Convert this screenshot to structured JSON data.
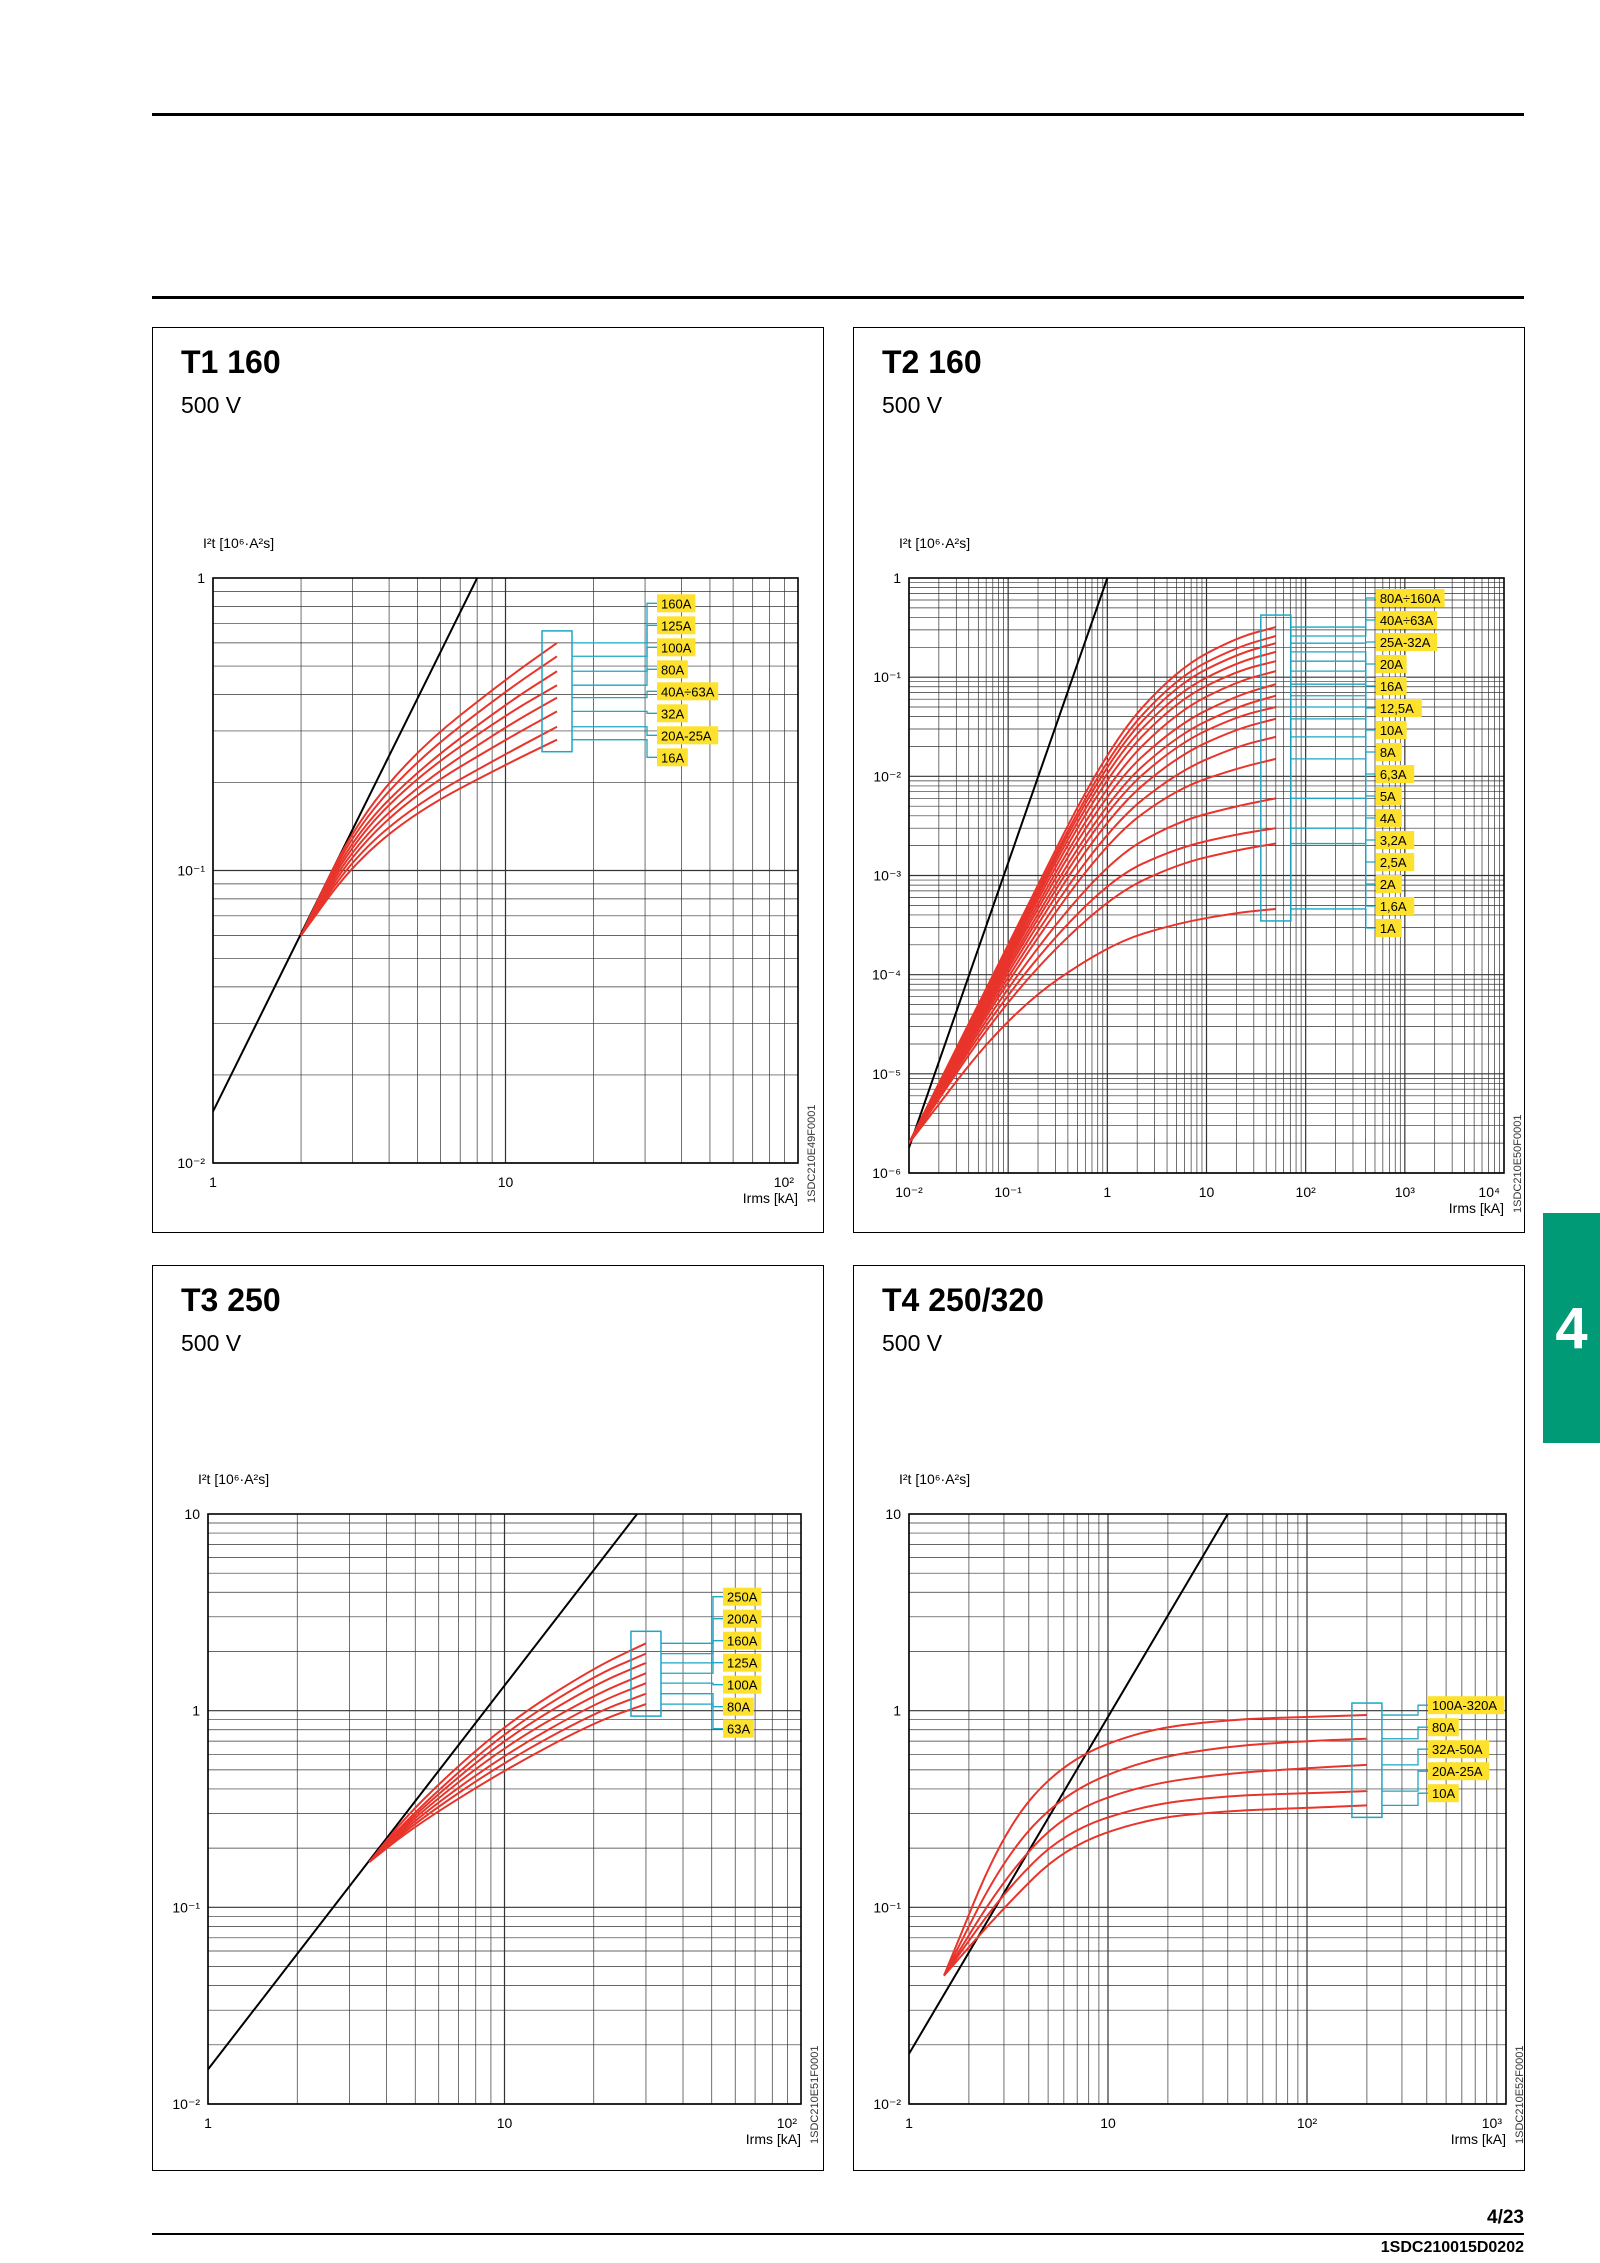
{
  "page": {
    "number": "4/23",
    "doc_code": "1SDC210015D0202",
    "section_tab": "4"
  },
  "colors": {
    "curve": "#e8342b",
    "asymptote": "#000000",
    "callout": "#1ea6c4",
    "label_bg": "#fde12d",
    "tab": "#009a77",
    "grid": "#333333"
  },
  "chart_data": [
    {
      "type": "line",
      "title": "T1 160",
      "subtitle": "500 V",
      "ylabel": "I²t [10⁶·A²s]",
      "xlabel": "Irms [kA]",
      "xscale": "log",
      "yscale": "log",
      "xlim": [
        1,
        100
      ],
      "ylim": [
        0.01,
        1
      ],
      "xticks": [
        "1",
        "10",
        "10²"
      ],
      "yticks": [
        "10⁻²",
        "10⁻¹",
        "1"
      ],
      "figure_code": "1SDC210E49F0001",
      "reference_line": {
        "x": [
          1,
          8
        ],
        "y": [
          0.015,
          1
        ]
      },
      "series": [
        {
          "name": "160A",
          "x": [
            2,
            3,
            5,
            10,
            15
          ],
          "y": [
            0.06,
            0.14,
            0.26,
            0.45,
            0.6
          ]
        },
        {
          "name": "125A",
          "x": [
            2,
            3,
            5,
            10,
            15
          ],
          "y": [
            0.06,
            0.135,
            0.24,
            0.41,
            0.54
          ]
        },
        {
          "name": "100A",
          "x": [
            2,
            3,
            5,
            10,
            15
          ],
          "y": [
            0.06,
            0.13,
            0.22,
            0.37,
            0.48
          ]
        },
        {
          "name": "80A",
          "x": [
            2,
            3,
            5,
            10,
            15
          ],
          "y": [
            0.06,
            0.125,
            0.21,
            0.34,
            0.43
          ]
        },
        {
          "name": "40A÷63A",
          "x": [
            2,
            3,
            5,
            10,
            15
          ],
          "y": [
            0.06,
            0.12,
            0.195,
            0.31,
            0.39
          ]
        },
        {
          "name": "32A",
          "x": [
            2,
            3,
            5,
            10,
            15
          ],
          "y": [
            0.06,
            0.115,
            0.185,
            0.28,
            0.35
          ]
        },
        {
          "name": "20A-25A",
          "x": [
            2,
            3,
            5,
            10,
            15
          ],
          "y": [
            0.06,
            0.11,
            0.17,
            0.25,
            0.31
          ]
        },
        {
          "name": "16A",
          "x": [
            2,
            3,
            5,
            10,
            15
          ],
          "y": [
            0.06,
            0.105,
            0.16,
            0.23,
            0.28
          ]
        }
      ]
    },
    {
      "type": "line",
      "title": "T2 160",
      "subtitle": "500 V",
      "ylabel": "I²t [10⁶·A²s]",
      "xlabel": "Irms [kA]",
      "xscale": "log",
      "yscale": "log",
      "xlim": [
        0.01,
        10000
      ],
      "ylim": [
        1e-06,
        1
      ],
      "xticks": [
        "10⁻²",
        "10⁻¹",
        "1",
        "10",
        "10²",
        "10³",
        "10⁴"
      ],
      "yticks": [
        "10⁻⁶",
        "10⁻⁵",
        "10⁻⁴",
        "10⁻³",
        "10⁻²",
        "10⁻¹",
        "1"
      ],
      "figure_code": "1SDC210E50F0001",
      "reference_line": {
        "x": [
          0.01,
          1.0
        ],
        "y": [
          1.8e-06,
          1
        ]
      },
      "series": [
        {
          "name": "80A÷160A",
          "x": [
            0.01,
            0.1,
            1,
            5,
            20,
            50
          ],
          "y": [
            2e-06,
            0.0002,
            0.02,
            0.12,
            0.25,
            0.32
          ]
        },
        {
          "name": "40A÷63A",
          "x": [
            0.01,
            0.1,
            1,
            5,
            20,
            50
          ],
          "y": [
            2e-06,
            0.00019,
            0.017,
            0.1,
            0.2,
            0.26
          ]
        },
        {
          "name": "25A-32A",
          "x": [
            0.01,
            0.1,
            1,
            5,
            20,
            50
          ],
          "y": [
            2e-06,
            0.00018,
            0.015,
            0.085,
            0.17,
            0.22
          ]
        },
        {
          "name": "20A",
          "x": [
            0.01,
            0.1,
            1,
            5,
            20,
            50
          ],
          "y": [
            2e-06,
            0.00017,
            0.013,
            0.07,
            0.14,
            0.18
          ]
        },
        {
          "name": "16A",
          "x": [
            0.01,
            0.1,
            1,
            5,
            20,
            50
          ],
          "y": [
            2e-06,
            0.00016,
            0.011,
            0.058,
            0.115,
            0.145
          ]
        },
        {
          "name": "12,5A",
          "x": [
            0.01,
            0.1,
            1,
            5,
            20,
            50
          ],
          "y": [
            2e-06,
            0.00015,
            0.009,
            0.045,
            0.09,
            0.115
          ]
        },
        {
          "name": "10A",
          "x": [
            0.01,
            0.1,
            1,
            5,
            20,
            50
          ],
          "y": [
            2e-06,
            0.00014,
            0.0075,
            0.033,
            0.065,
            0.085
          ]
        },
        {
          "name": "8A",
          "x": [
            0.01,
            0.1,
            1,
            5,
            20,
            50
          ],
          "y": [
            2e-06,
            0.00013,
            0.006,
            0.026,
            0.05,
            0.065
          ]
        },
        {
          "name": "6,3A",
          "x": [
            0.01,
            0.1,
            1,
            5,
            20,
            50
          ],
          "y": [
            2e-06,
            0.00012,
            0.005,
            0.021,
            0.04,
            0.05
          ]
        },
        {
          "name": "5A",
          "x": [
            0.01,
            0.1,
            1,
            5,
            20,
            50
          ],
          "y": [
            2e-06,
            0.00011,
            0.004,
            0.016,
            0.03,
            0.038
          ]
        },
        {
          "name": "4A",
          "x": [
            0.01,
            0.1,
            1,
            5,
            20,
            50
          ],
          "y": [
            2e-06,
            0.0001,
            0.003,
            0.011,
            0.02,
            0.025
          ]
        },
        {
          "name": "3,2A",
          "x": [
            0.01,
            0.1,
            1,
            5,
            20,
            50
          ],
          "y": [
            2e-06,
            9e-05,
            0.0023,
            0.0075,
            0.012,
            0.015
          ]
        },
        {
          "name": "2,5A",
          "x": [
            0.01,
            0.1,
            1,
            5,
            20,
            50
          ],
          "y": [
            2e-06,
            8e-05,
            0.0014,
            0.0035,
            0.005,
            0.006
          ]
        },
        {
          "name": "2A",
          "x": [
            0.01,
            0.1,
            1,
            5,
            20,
            50
          ],
          "y": [
            2e-06,
            7e-05,
            0.0009,
            0.0019,
            0.0026,
            0.003
          ]
        },
        {
          "name": "1,6A",
          "x": [
            0.01,
            0.1,
            1,
            5,
            20,
            50
          ],
          "y": [
            2e-06,
            6e-05,
            0.0006,
            0.0013,
            0.0018,
            0.0021
          ]
        },
        {
          "name": "1A",
          "x": [
            0.01,
            0.1,
            1,
            5,
            20,
            50
          ],
          "y": [
            2e-06,
            4e-05,
            0.0002,
            0.00033,
            0.00042,
            0.00046
          ]
        }
      ]
    },
    {
      "type": "line",
      "title": "T3 250",
      "subtitle": "500 V",
      "ylabel": "I²t [10⁶·A²s]",
      "xlabel": "Irms [kA]",
      "xscale": "log",
      "yscale": "log",
      "xlim": [
        1,
        100
      ],
      "ylim": [
        0.01,
        10
      ],
      "xticks": [
        "1",
        "10",
        "10²"
      ],
      "yticks": [
        "10⁻²",
        "10⁻¹",
        "1",
        "10"
      ],
      "figure_code": "1SDC210E51F0001",
      "reference_line": {
        "x": [
          1,
          28
        ],
        "y": [
          0.015,
          10
        ]
      },
      "series": [
        {
          "name": "250A",
          "x": [
            3.5,
            5,
            10,
            20,
            30
          ],
          "y": [
            0.17,
            0.33,
            0.85,
            1.65,
            2.2
          ]
        },
        {
          "name": "200A",
          "x": [
            3.5,
            5,
            10,
            20,
            30
          ],
          "y": [
            0.17,
            0.31,
            0.78,
            1.5,
            1.95
          ]
        },
        {
          "name": "160A",
          "x": [
            3.5,
            5,
            10,
            20,
            30
          ],
          "y": [
            0.17,
            0.3,
            0.72,
            1.35,
            1.75
          ]
        },
        {
          "name": "125A",
          "x": [
            3.5,
            5,
            10,
            20,
            30
          ],
          "y": [
            0.17,
            0.29,
            0.66,
            1.2,
            1.55
          ]
        },
        {
          "name": "100A",
          "x": [
            3.5,
            5,
            10,
            20,
            30
          ],
          "y": [
            0.17,
            0.28,
            0.6,
            1.08,
            1.38
          ]
        },
        {
          "name": "80A",
          "x": [
            3.5,
            5,
            10,
            20,
            30
          ],
          "y": [
            0.17,
            0.27,
            0.55,
            0.97,
            1.22
          ]
        },
        {
          "name": "63A",
          "x": [
            3.5,
            5,
            10,
            20,
            30
          ],
          "y": [
            0.17,
            0.26,
            0.5,
            0.87,
            1.08
          ]
        }
      ]
    },
    {
      "type": "line",
      "title": "T4 250/320",
      "subtitle": "500 V",
      "ylabel": "I²t [10⁶·A²s]",
      "xlabel": "Irms [kA]",
      "xscale": "log",
      "yscale": "log",
      "xlim": [
        1,
        1000
      ],
      "ylim": [
        0.01,
        10
      ],
      "xticks": [
        "1",
        "10",
        "10²",
        "10³"
      ],
      "yticks": [
        "10⁻²",
        "10⁻¹",
        "1",
        "10"
      ],
      "figure_code": "1SDC210E52F0001",
      "reference_line": {
        "x": [
          1,
          40
        ],
        "y": [
          0.018,
          10
        ]
      },
      "series": [
        {
          "name": "100A-320A",
          "x": [
            1.5,
            3,
            6,
            15,
            40,
            100,
            200
          ],
          "y": [
            0.045,
            0.25,
            0.55,
            0.8,
            0.9,
            0.93,
            0.95
          ]
        },
        {
          "name": "80A",
          "x": [
            1.5,
            3,
            6,
            15,
            40,
            100,
            200
          ],
          "y": [
            0.045,
            0.18,
            0.38,
            0.56,
            0.66,
            0.7,
            0.72
          ]
        },
        {
          "name": "32A-50A",
          "x": [
            1.5,
            3,
            6,
            15,
            40,
            100,
            200
          ],
          "y": [
            0.045,
            0.14,
            0.3,
            0.42,
            0.48,
            0.51,
            0.53
          ]
        },
        {
          "name": "20A-25A",
          "x": [
            1.5,
            3,
            6,
            15,
            40,
            100,
            200
          ],
          "y": [
            0.045,
            0.12,
            0.24,
            0.33,
            0.37,
            0.38,
            0.39
          ]
        },
        {
          "name": "10A",
          "x": [
            1.5,
            3,
            6,
            15,
            40,
            100,
            200
          ],
          "y": [
            0.045,
            0.1,
            0.2,
            0.28,
            0.31,
            0.32,
            0.33
          ]
        }
      ]
    }
  ]
}
